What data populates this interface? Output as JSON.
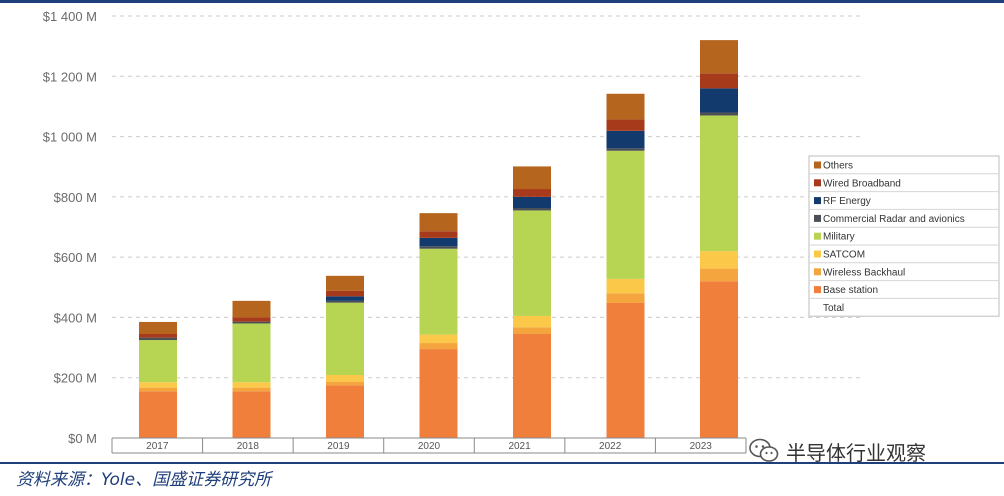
{
  "chart_data": {
    "type": "bar",
    "stacked": true,
    "title": "",
    "xlabel": "",
    "ylabel": "",
    "ylim": [
      0,
      1400
    ],
    "y_ticks": [
      0,
      200,
      400,
      600,
      800,
      1000,
      1200,
      1400
    ],
    "y_tick_labels": [
      "$0 M",
      "$200 M",
      "$400 M",
      "$600 M",
      "$800 M",
      "$1 000 M",
      "$1 200 M",
      "$1 400 M"
    ],
    "grid": true,
    "legend_position": "right",
    "categories": [
      "2017",
      "2018",
      "2019",
      "2020",
      "2021",
      "2022",
      "2023"
    ],
    "series": [
      {
        "name": "Base station",
        "color": "#f07f3c",
        "values": [
          155,
          155,
          175,
          295,
          345,
          448,
          520
        ]
      },
      {
        "name": "Wireless Backhaul",
        "color": "#f4a53e",
        "values": [
          12,
          12,
          12,
          20,
          22,
          32,
          42
        ]
      },
      {
        "name": "SATCOM",
        "color": "#fbc84a",
        "values": [
          18,
          18,
          22,
          28,
          38,
          48,
          58
        ]
      },
      {
        "name": "Military",
        "color": "#b7d452",
        "values": [
          140,
          195,
          240,
          285,
          350,
          425,
          450
        ]
      },
      {
        "name": "Commercial Radar and avionics",
        "color": "#4b4f58",
        "values": [
          8,
          6,
          6,
          8,
          8,
          8,
          10
        ]
      },
      {
        "name": "RF Energy",
        "color": "#123a6d",
        "values": [
          0,
          0,
          15,
          28,
          37,
          58,
          80
        ]
      },
      {
        "name": "Wired Broadband",
        "color": "#a83a1c",
        "values": [
          12,
          14,
          18,
          22,
          26,
          38,
          50
        ]
      },
      {
        "name": "Others",
        "color": "#b5651d",
        "values": [
          40,
          55,
          50,
          60,
          75,
          85,
          110
        ]
      }
    ],
    "legend": {
      "entries": [
        "Others",
        "Wired Broadband",
        "RF Energy",
        "Commercial Radar and avionics",
        "Military",
        "SATCOM",
        "Wireless Backhaul",
        "Base station",
        "Total"
      ],
      "colors": [
        "#b5651d",
        "#a83a1c",
        "#123a6d",
        "#4b4f58",
        "#b7d452",
        "#fbc84a",
        "#f4a53e",
        "#f07f3c",
        ""
      ]
    }
  },
  "footer": {
    "source_text": "资料来源：Yole、国盛证券研究所",
    "watermark_text": "半导体行业观察",
    "watermark_icon": "wechat-icon"
  },
  "colors": {
    "rule": "#1f3f7a",
    "axis_text": "#6b6b6b",
    "grid": "#cccccc"
  }
}
